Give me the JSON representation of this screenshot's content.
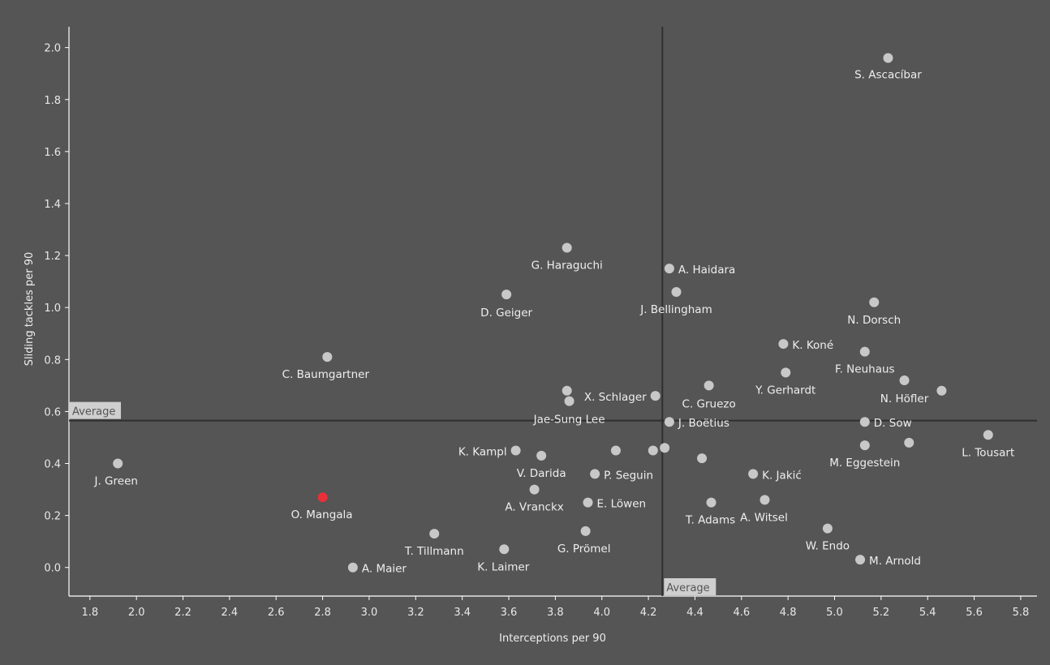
{
  "chart_data": {
    "type": "scatter",
    "title": "",
    "xlabel": "Interceptions per 90",
    "ylabel": "Sliding tackles per 90",
    "xlim": [
      1.71,
      5.87
    ],
    "ylim": [
      -0.11,
      2.08
    ],
    "xticks": [
      1.8,
      2.0,
      2.2,
      2.4,
      2.6,
      2.8,
      3.0,
      3.2,
      3.4,
      3.6,
      3.8,
      4.0,
      4.2,
      4.4,
      4.6,
      4.8,
      5.0,
      5.2,
      5.4,
      5.6,
      5.8
    ],
    "yticks": [
      0.0,
      0.2,
      0.4,
      0.6,
      0.8,
      1.0,
      1.2,
      1.4,
      1.6,
      1.8,
      2.0
    ],
    "grid": false,
    "average": {
      "x": 4.26,
      "y": 0.565,
      "label": "Average"
    },
    "colors": {
      "background": "#555555",
      "point": "#c8c8c8",
      "highlight": "#e8303a",
      "line": "#2f2f2f",
      "text": "#eeeeee"
    },
    "points": [
      {
        "label": "S. Ascacíbar",
        "x": 5.23,
        "y": 1.96
      },
      {
        "label": "G. Haraguchi",
        "x": 3.85,
        "y": 1.23
      },
      {
        "label": "A. Haidara",
        "x": 4.29,
        "y": 1.15
      },
      {
        "label": "D. Geiger",
        "x": 3.59,
        "y": 1.05
      },
      {
        "label": "J. Bellingham",
        "x": 4.32,
        "y": 1.06
      },
      {
        "label": "N. Dorsch",
        "x": 5.17,
        "y": 1.02
      },
      {
        "label": "C. Baumgartner",
        "x": 2.82,
        "y": 0.81
      },
      {
        "label": "K. Koné",
        "x": 4.78,
        "y": 0.86
      },
      {
        "label": "F. Neuhaus",
        "x": 5.13,
        "y": 0.83
      },
      {
        "label": "Y. Gerhardt",
        "x": 4.79,
        "y": 0.75
      },
      {
        "label": "N. Höfler",
        "x": 5.3,
        "y": 0.72
      },
      {
        "label": "C. Gruezo",
        "x": 4.46,
        "y": 0.7
      },
      {
        "label": "X. Schlager",
        "x": 4.23,
        "y": 0.66
      },
      {
        "label": "Jae-Sung Lee",
        "x": 3.86,
        "y": 0.64
      },
      {
        "label": "",
        "x": 3.85,
        "y": 0.68
      },
      {
        "label": "",
        "x": 5.46,
        "y": 0.68
      },
      {
        "label": "J. Boëtius",
        "x": 4.29,
        "y": 0.56
      },
      {
        "label": "D. Sow",
        "x": 5.13,
        "y": 0.56
      },
      {
        "label": "L. Tousart",
        "x": 5.66,
        "y": 0.51
      },
      {
        "label": "M. Eggestein",
        "x": 5.13,
        "y": 0.47
      },
      {
        "label": "",
        "x": 5.32,
        "y": 0.48
      },
      {
        "label": "K. Kampl",
        "x": 3.63,
        "y": 0.45
      },
      {
        "label": "V. Darida",
        "x": 3.74,
        "y": 0.43
      },
      {
        "label": "",
        "x": 4.06,
        "y": 0.45
      },
      {
        "label": "",
        "x": 4.22,
        "y": 0.45
      },
      {
        "label": "",
        "x": 4.27,
        "y": 0.46
      },
      {
        "label": "",
        "x": 4.43,
        "y": 0.42
      },
      {
        "label": "J. Green",
        "x": 1.92,
        "y": 0.4
      },
      {
        "label": "P. Seguin",
        "x": 3.97,
        "y": 0.36
      },
      {
        "label": "K. Jakić",
        "x": 4.65,
        "y": 0.36
      },
      {
        "label": "A. Vranckx",
        "x": 3.71,
        "y": 0.3
      },
      {
        "label": "O. Mangala",
        "x": 2.8,
        "y": 0.27,
        "highlight": true
      },
      {
        "label": "E. Löwen",
        "x": 3.94,
        "y": 0.25
      },
      {
        "label": "T. Adams",
        "x": 4.47,
        "y": 0.25
      },
      {
        "label": "A. Witsel",
        "x": 4.7,
        "y": 0.26
      },
      {
        "label": "W. Endo",
        "x": 4.97,
        "y": 0.15
      },
      {
        "label": "G. Prömel",
        "x": 3.93,
        "y": 0.14
      },
      {
        "label": "T. Tillmann",
        "x": 3.28,
        "y": 0.13
      },
      {
        "label": "K. Laimer",
        "x": 3.58,
        "y": 0.07
      },
      {
        "label": "M. Arnold",
        "x": 5.11,
        "y": 0.03
      },
      {
        "label": "A. Maier",
        "x": 2.93,
        "y": 0.0
      }
    ]
  }
}
